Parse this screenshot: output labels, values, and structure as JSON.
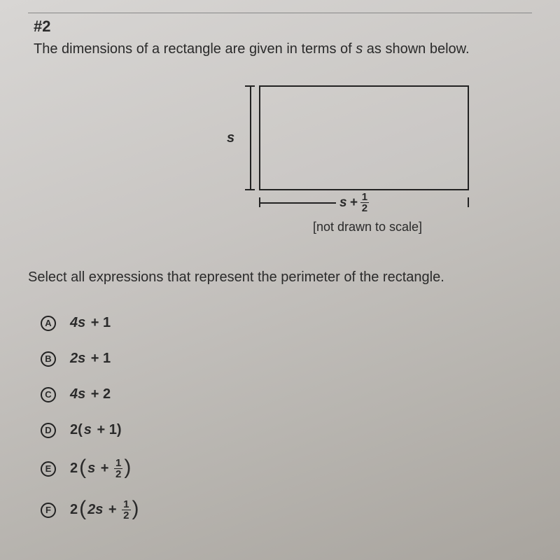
{
  "question_number": "#2",
  "prompt": "The dimensions of a rectangle are given in terms of s as shown below.",
  "figure": {
    "height_label": "s",
    "width_label_var": "s",
    "width_label_op": "+",
    "width_label_frac_num": "1",
    "width_label_frac_den": "2",
    "scale_note": "[not drawn to scale]",
    "rect_border_color": "#222222",
    "background_color": "transparent"
  },
  "instruction": "Select all expressions that represent the perimeter of the rectangle.",
  "choices": [
    {
      "letter": "A",
      "expr_type": "plain",
      "text": "4s + 1"
    },
    {
      "letter": "B",
      "expr_type": "plain",
      "text": "2s + 1"
    },
    {
      "letter": "C",
      "expr_type": "plain",
      "text": "4s + 2"
    },
    {
      "letter": "D",
      "expr_type": "paren_plain",
      "coef": "2",
      "inner": "s + 1"
    },
    {
      "letter": "E",
      "expr_type": "paren_frac",
      "coef": "2",
      "inner_var": "s",
      "frac_num": "1",
      "frac_den": "2"
    },
    {
      "letter": "F",
      "expr_type": "paren_frac",
      "coef": "2",
      "inner_var": "2s",
      "frac_num": "1",
      "frac_den": "2"
    }
  ],
  "colors": {
    "text": "#2a2a2a",
    "border": "#222222"
  }
}
